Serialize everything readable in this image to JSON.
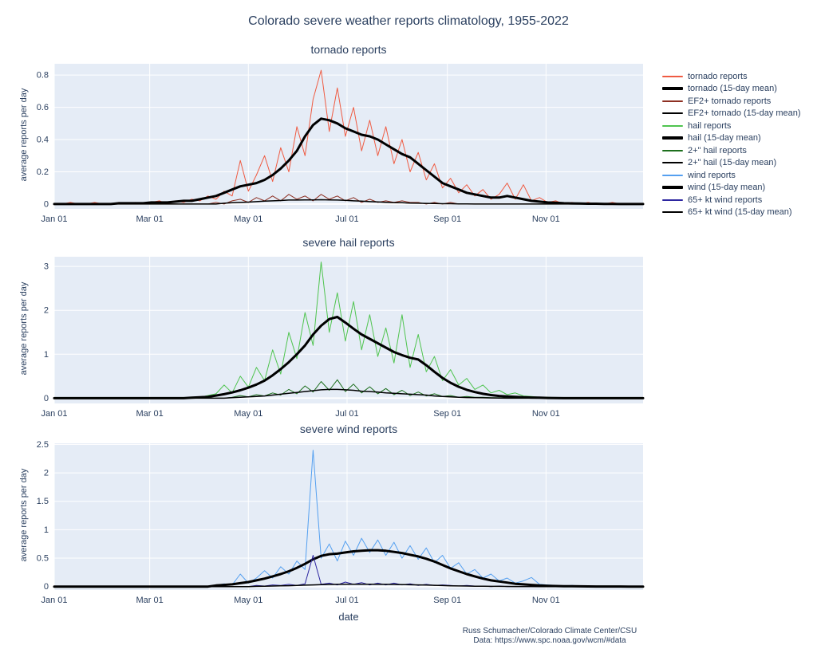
{
  "figure": {
    "title": "Colorado severe weather reports climatology, 1955-2022",
    "credit_line1": "Russ Schumacher/Colorado Climate Center/CSU",
    "credit_line2": "Data: https://www.spc.noaa.gov/wcm/#data"
  },
  "style": {
    "paper_bg": "#ffffff",
    "plot_bg": "#e5ecf6",
    "grid_color": "#ffffff",
    "text_color": "#2a3f5f"
  },
  "x_axis": {
    "label": "date",
    "range": [
      1,
      365
    ],
    "ticks": [
      {
        "day": 1,
        "label": "Jan 01"
      },
      {
        "day": 60,
        "label": "Mar 01"
      },
      {
        "day": 121,
        "label": "May 01"
      },
      {
        "day": 182,
        "label": "Jul 01"
      },
      {
        "day": 244,
        "label": "Sep 01"
      },
      {
        "day": 305,
        "label": "Nov 01"
      }
    ],
    "days": [
      1,
      6,
      11,
      16,
      21,
      26,
      31,
      36,
      41,
      46,
      51,
      56,
      61,
      66,
      71,
      76,
      81,
      86,
      91,
      96,
      101,
      106,
      111,
      116,
      121,
      126,
      131,
      136,
      141,
      146,
      151,
      156,
      161,
      166,
      171,
      176,
      181,
      186,
      191,
      196,
      201,
      206,
      211,
      216,
      221,
      226,
      231,
      236,
      241,
      246,
      251,
      256,
      261,
      266,
      271,
      276,
      281,
      286,
      291,
      296,
      301,
      306,
      311,
      316,
      321,
      326,
      331,
      336,
      341,
      346,
      351,
      356,
      361,
      365
    ]
  },
  "chart_data": [
    {
      "type": "line",
      "title": "tornado reports",
      "ylabel": "average reports per day",
      "ylim": [
        -0.03,
        0.87
      ],
      "yticks": [
        {
          "v": 0,
          "label": "0"
        },
        {
          "v": 0.2,
          "label": "0.2"
        },
        {
          "v": 0.4,
          "label": "0.4"
        },
        {
          "v": 0.6,
          "label": "0.6"
        },
        {
          "v": 0.8,
          "label": "0.8"
        }
      ],
      "series": [
        {
          "name": "tornado reports",
          "color": "#ef5b42",
          "width": 1,
          "values": [
            0,
            0,
            0.01,
            0,
            0,
            0.01,
            0,
            0,
            0.01,
            0,
            0.01,
            0,
            0.01,
            0.02,
            0,
            0.02,
            0.01,
            0.03,
            0.02,
            0.05,
            0.03,
            0.08,
            0.05,
            0.27,
            0.08,
            0.18,
            0.3,
            0.14,
            0.35,
            0.2,
            0.48,
            0.3,
            0.65,
            0.83,
            0.45,
            0.72,
            0.42,
            0.6,
            0.33,
            0.52,
            0.3,
            0.48,
            0.25,
            0.4,
            0.2,
            0.32,
            0.15,
            0.25,
            0.1,
            0.16,
            0.07,
            0.12,
            0.05,
            0.09,
            0.03,
            0.06,
            0.13,
            0.03,
            0.12,
            0.02,
            0.04,
            0.01,
            0.02,
            0,
            0.01,
            0,
            0.01,
            0,
            0,
            0.01,
            0,
            0,
            0,
            0
          ]
        },
        {
          "name": "tornado (15-day mean)",
          "color": "#000000",
          "width": 3,
          "values": [
            0,
            0,
            0,
            0,
            0,
            0,
            0,
            0,
            0.005,
            0.005,
            0.005,
            0.005,
            0.01,
            0.01,
            0.01,
            0.015,
            0.02,
            0.02,
            0.03,
            0.04,
            0.05,
            0.07,
            0.09,
            0.11,
            0.12,
            0.13,
            0.15,
            0.18,
            0.22,
            0.27,
            0.33,
            0.42,
            0.49,
            0.53,
            0.52,
            0.5,
            0.47,
            0.45,
            0.43,
            0.42,
            0.4,
            0.37,
            0.34,
            0.31,
            0.29,
            0.25,
            0.21,
            0.17,
            0.13,
            0.11,
            0.09,
            0.07,
            0.06,
            0.05,
            0.04,
            0.04,
            0.05,
            0.04,
            0.03,
            0.02,
            0.015,
            0.01,
            0.008,
            0.005,
            0.004,
            0.003,
            0.002,
            0.002,
            0.001,
            0.001,
            0,
            0,
            0,
            0
          ]
        },
        {
          "name": "EF2+ tornado reports",
          "color": "#8e3023",
          "width": 1,
          "values": [
            0,
            0,
            0,
            0,
            0,
            0,
            0,
            0,
            0,
            0,
            0,
            0,
            0,
            0,
            0,
            0,
            0,
            0,
            0,
            0,
            0.01,
            0,
            0.02,
            0.03,
            0.01,
            0.04,
            0.02,
            0.05,
            0.02,
            0.06,
            0.03,
            0.05,
            0.02,
            0.06,
            0.03,
            0.05,
            0.02,
            0.04,
            0.01,
            0.03,
            0.01,
            0.02,
            0.01,
            0.02,
            0.01,
            0.01,
            0,
            0.01,
            0,
            0.01,
            0,
            0,
            0,
            0,
            0,
            0,
            0,
            0,
            0,
            0,
            0,
            0,
            0,
            0,
            0,
            0,
            0,
            0,
            0,
            0,
            0,
            0,
            0,
            0
          ]
        },
        {
          "name": "EF2+ tornado (15-day mean)",
          "color": "#000000",
          "width": 1.5,
          "values": [
            0,
            0,
            0,
            0,
            0,
            0,
            0,
            0,
            0,
            0,
            0,
            0,
            0,
            0,
            0,
            0,
            0,
            0,
            0,
            0,
            0,
            0.005,
            0.008,
            0.01,
            0.012,
            0.015,
            0.018,
            0.02,
            0.022,
            0.025,
            0.025,
            0.026,
            0.026,
            0.027,
            0.026,
            0.025,
            0.023,
            0.02,
            0.018,
            0.015,
            0.013,
            0.011,
            0.009,
            0.008,
            0.006,
            0.005,
            0.004,
            0.003,
            0.002,
            0.002,
            0.001,
            0.001,
            0,
            0,
            0,
            0,
            0,
            0,
            0,
            0,
            0,
            0,
            0,
            0,
            0,
            0,
            0,
            0,
            0,
            0,
            0,
            0,
            0,
            0
          ]
        }
      ]
    },
    {
      "type": "line",
      "title": "severe hail reports",
      "ylabel": "average reports per day",
      "ylim": [
        -0.12,
        3.22
      ],
      "yticks": [
        {
          "v": 0,
          "label": "0"
        },
        {
          "v": 1,
          "label": "1"
        },
        {
          "v": 2,
          "label": "2"
        },
        {
          "v": 3,
          "label": "3"
        }
      ],
      "series": [
        {
          "name": "hail reports",
          "color": "#4fc44f",
          "width": 1,
          "values": [
            0,
            0,
            0,
            0,
            0,
            0,
            0,
            0,
            0,
            0,
            0,
            0,
            0,
            0,
            0,
            0,
            0,
            0,
            0.02,
            0.06,
            0.1,
            0.3,
            0.12,
            0.5,
            0.25,
            0.7,
            0.4,
            1.1,
            0.55,
            1.5,
            0.9,
            1.95,
            1.2,
            3.1,
            1.5,
            2.4,
            1.3,
            2.2,
            1.1,
            1.9,
            0.95,
            1.6,
            0.8,
            1.9,
            0.7,
            1.45,
            0.6,
            0.95,
            0.4,
            0.65,
            0.3,
            0.45,
            0.2,
            0.3,
            0.12,
            0.18,
            0.08,
            0.12,
            0.05,
            0.04,
            0.02,
            0.02,
            0.01,
            0,
            0,
            0,
            0,
            0,
            0,
            0,
            0,
            0,
            0,
            0
          ]
        },
        {
          "name": "hail (15-day mean)",
          "color": "#000000",
          "width": 3,
          "values": [
            0,
            0,
            0,
            0,
            0,
            0,
            0,
            0,
            0,
            0,
            0,
            0,
            0,
            0,
            0,
            0,
            0,
            0.01,
            0.02,
            0.03,
            0.06,
            0.09,
            0.13,
            0.18,
            0.24,
            0.31,
            0.4,
            0.52,
            0.66,
            0.82,
            1.0,
            1.2,
            1.45,
            1.65,
            1.8,
            1.85,
            1.72,
            1.58,
            1.45,
            1.35,
            1.25,
            1.15,
            1.05,
            0.98,
            0.92,
            0.88,
            0.75,
            0.6,
            0.46,
            0.35,
            0.26,
            0.19,
            0.14,
            0.1,
            0.07,
            0.05,
            0.04,
            0.03,
            0.02,
            0.015,
            0.01,
            0.005,
            0.003,
            0,
            0,
            0,
            0,
            0,
            0,
            0,
            0,
            0,
            0,
            0
          ]
        },
        {
          "name": "2+\" hail reports",
          "color": "#1d6f1d",
          "width": 1,
          "values": [
            0,
            0,
            0,
            0,
            0,
            0,
            0,
            0,
            0,
            0,
            0,
            0,
            0,
            0,
            0,
            0,
            0,
            0,
            0,
            0,
            0,
            0,
            0.02,
            0.06,
            0.03,
            0.08,
            0.05,
            0.12,
            0.07,
            0.2,
            0.1,
            0.28,
            0.14,
            0.38,
            0.18,
            0.42,
            0.15,
            0.32,
            0.12,
            0.26,
            0.1,
            0.22,
            0.08,
            0.18,
            0.06,
            0.14,
            0.05,
            0.1,
            0.04,
            0.06,
            0.02,
            0.04,
            0.02,
            0.02,
            0.01,
            0.01,
            0,
            0,
            0,
            0,
            0,
            0,
            0,
            0,
            0,
            0,
            0,
            0,
            0,
            0,
            0,
            0,
            0,
            0
          ]
        },
        {
          "name": "2+\" hail (15-day mean)",
          "color": "#000000",
          "width": 1.5,
          "values": [
            0,
            0,
            0,
            0,
            0,
            0,
            0,
            0,
            0,
            0,
            0,
            0,
            0,
            0,
            0,
            0,
            0,
            0,
            0,
            0,
            0,
            0,
            0.01,
            0.02,
            0.03,
            0.04,
            0.05,
            0.07,
            0.09,
            0.11,
            0.13,
            0.15,
            0.17,
            0.19,
            0.2,
            0.2,
            0.19,
            0.18,
            0.16,
            0.15,
            0.14,
            0.12,
            0.11,
            0.1,
            0.09,
            0.08,
            0.07,
            0.05,
            0.04,
            0.03,
            0.02,
            0.015,
            0.01,
            0.008,
            0.005,
            0.003,
            0,
            0,
            0,
            0,
            0,
            0,
            0,
            0,
            0,
            0,
            0,
            0,
            0,
            0,
            0,
            0,
            0,
            0
          ]
        }
      ]
    },
    {
      "type": "line",
      "title": "severe wind reports",
      "ylabel": "average reports per day",
      "ylim": [
        -0.06,
        2.52
      ],
      "yticks": [
        {
          "v": 0,
          "label": "0"
        },
        {
          "v": 0.5,
          "label": "0.5"
        },
        {
          "v": 1,
          "label": "1"
        },
        {
          "v": 1.5,
          "label": "1.5"
        },
        {
          "v": 2,
          "label": "2"
        },
        {
          "v": 2.5,
          "label": "2.5"
        }
      ],
      "series": [
        {
          "name": "wind reports",
          "color": "#55a0f0",
          "width": 1,
          "values": [
            0,
            0,
            0,
            0,
            0,
            0,
            0,
            0,
            0,
            0,
            0,
            0,
            0,
            0,
            0,
            0,
            0,
            0,
            0,
            0,
            0.02,
            0.05,
            0.03,
            0.22,
            0.06,
            0.15,
            0.28,
            0.15,
            0.35,
            0.22,
            0.45,
            0.3,
            2.4,
            0.5,
            0.75,
            0.45,
            0.8,
            0.55,
            0.85,
            0.6,
            0.82,
            0.55,
            0.78,
            0.5,
            0.72,
            0.48,
            0.68,
            0.42,
            0.55,
            0.32,
            0.42,
            0.22,
            0.3,
            0.15,
            0.22,
            0.1,
            0.15,
            0.06,
            0.1,
            0.16,
            0.04,
            0.03,
            0.02,
            0.01,
            0.02,
            0.01,
            0,
            0.01,
            0,
            0,
            0.01,
            0,
            0,
            0
          ]
        },
        {
          "name": "wind (15-day mean)",
          "color": "#000000",
          "width": 3,
          "values": [
            0,
            0,
            0,
            0,
            0,
            0,
            0,
            0,
            0,
            0,
            0,
            0,
            0,
            0,
            0,
            0,
            0,
            0,
            0,
            0,
            0.02,
            0.03,
            0.04,
            0.06,
            0.08,
            0.11,
            0.14,
            0.18,
            0.22,
            0.27,
            0.33,
            0.4,
            0.48,
            0.54,
            0.57,
            0.58,
            0.6,
            0.62,
            0.63,
            0.64,
            0.64,
            0.63,
            0.61,
            0.59,
            0.56,
            0.53,
            0.49,
            0.44,
            0.38,
            0.32,
            0.27,
            0.22,
            0.18,
            0.14,
            0.11,
            0.09,
            0.07,
            0.05,
            0.04,
            0.03,
            0.02,
            0.015,
            0.01,
            0.008,
            0.006,
            0.004,
            0.003,
            0.002,
            0.002,
            0.001,
            0.001,
            0,
            0,
            0
          ]
        },
        {
          "name": "65+ kt wind reports",
          "color": "#2d26a0",
          "width": 1,
          "values": [
            0,
            0,
            0,
            0,
            0,
            0,
            0,
            0,
            0,
            0,
            0,
            0,
            0,
            0,
            0,
            0,
            0,
            0,
            0,
            0,
            0,
            0,
            0,
            0,
            0,
            0.02,
            0.01,
            0.03,
            0.02,
            0.04,
            0.02,
            0.05,
            0.55,
            0.04,
            0.06,
            0.03,
            0.08,
            0.04,
            0.07,
            0.03,
            0.06,
            0.03,
            0.06,
            0.03,
            0.05,
            0.02,
            0.04,
            0.02,
            0.03,
            0.02,
            0.01,
            0.02,
            0.01,
            0.01,
            0,
            0.01,
            0,
            0,
            0,
            0,
            0,
            0,
            0,
            0,
            0,
            0,
            0,
            0,
            0,
            0,
            0,
            0,
            0,
            0
          ]
        },
        {
          "name": "65+ kt wind (15-day mean)",
          "color": "#000000",
          "width": 1.5,
          "values": [
            0,
            0,
            0,
            0,
            0,
            0,
            0,
            0,
            0,
            0,
            0,
            0,
            0,
            0,
            0,
            0,
            0,
            0,
            0,
            0,
            0,
            0,
            0,
            0,
            0,
            0.005,
            0.008,
            0.01,
            0.013,
            0.016,
            0.02,
            0.025,
            0.03,
            0.035,
            0.038,
            0.04,
            0.042,
            0.043,
            0.043,
            0.042,
            0.04,
            0.04,
            0.038,
            0.036,
            0.033,
            0.03,
            0.027,
            0.023,
            0.019,
            0.015,
            0.012,
            0.01,
            0.008,
            0.006,
            0.005,
            0.004,
            0.003,
            0.002,
            0.002,
            0.001,
            0,
            0,
            0,
            0,
            0,
            0,
            0,
            0,
            0,
            0,
            0,
            0,
            0,
            0
          ]
        }
      ]
    }
  ]
}
